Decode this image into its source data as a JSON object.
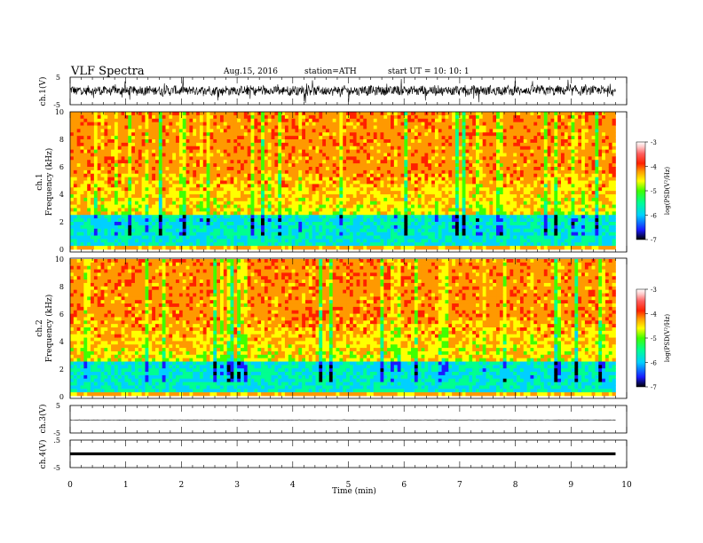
{
  "header": {
    "title": "VLF  Spectra",
    "date": "Aug.15, 2016",
    "station": "station=ATH",
    "start": "start  UT  =    10: 10: 1"
  },
  "chart_data": [
    {
      "type": "line",
      "id": "ch1-waveform",
      "ylabel": "ch.1(V)",
      "ylim": [
        -5,
        5
      ],
      "yticks": [
        "5",
        "-5"
      ],
      "x_range_min": [
        0,
        9.8
      ],
      "series_color": "#000000"
    },
    {
      "type": "heatmap",
      "id": "ch1-spectrogram",
      "ylabel_line1": "ch.1",
      "ylabel_line2": "Frequency  (kHz)",
      "ylim": [
        0,
        10
      ],
      "yticks": [
        "0",
        "2",
        "4",
        "6",
        "8",
        "10"
      ],
      "x_range_min": [
        0,
        9.8
      ]
    },
    {
      "type": "heatmap",
      "id": "ch2-spectrogram",
      "ylabel_line1": "ch.2",
      "ylabel_line2": "Frequency  (kHz)",
      "ylim": [
        0,
        10
      ],
      "yticks": [
        "0",
        "2",
        "4",
        "6",
        "8",
        "10"
      ],
      "x_range_min": [
        0,
        9.8
      ]
    },
    {
      "type": "line",
      "id": "ch3-waveform",
      "ylabel": "ch.3(V)",
      "ylim": [
        -5,
        5
      ],
      "yticks": [
        "5",
        "-5"
      ],
      "level": -0.3
    },
    {
      "type": "line",
      "id": "ch4-waveform",
      "ylabel": "ch.4(V)",
      "ylim": [
        -5,
        5
      ],
      "yticks": [
        ".5",
        "-5"
      ],
      "level": 0
    }
  ],
  "xaxis": {
    "label": "Time  (min)",
    "ticks": [
      "0",
      "1",
      "2",
      "3",
      "4",
      "5",
      "6",
      "7",
      "8",
      "9",
      "10"
    ],
    "range": [
      0,
      10
    ]
  },
  "colorbar": {
    "label": "log(PSD(V²/Hz)",
    "ticks": [
      "-3",
      "-4",
      "-5",
      "-6",
      "-7"
    ],
    "range": [
      -7,
      -3
    ],
    "stops": [
      "#000000",
      "#1a1aff",
      "#00d0ff",
      "#00ff90",
      "#40ff00",
      "#ffff00",
      "#ff9900",
      "#ff2000",
      "#ff6060",
      "#ffc8c8",
      "#ffffff"
    ]
  }
}
